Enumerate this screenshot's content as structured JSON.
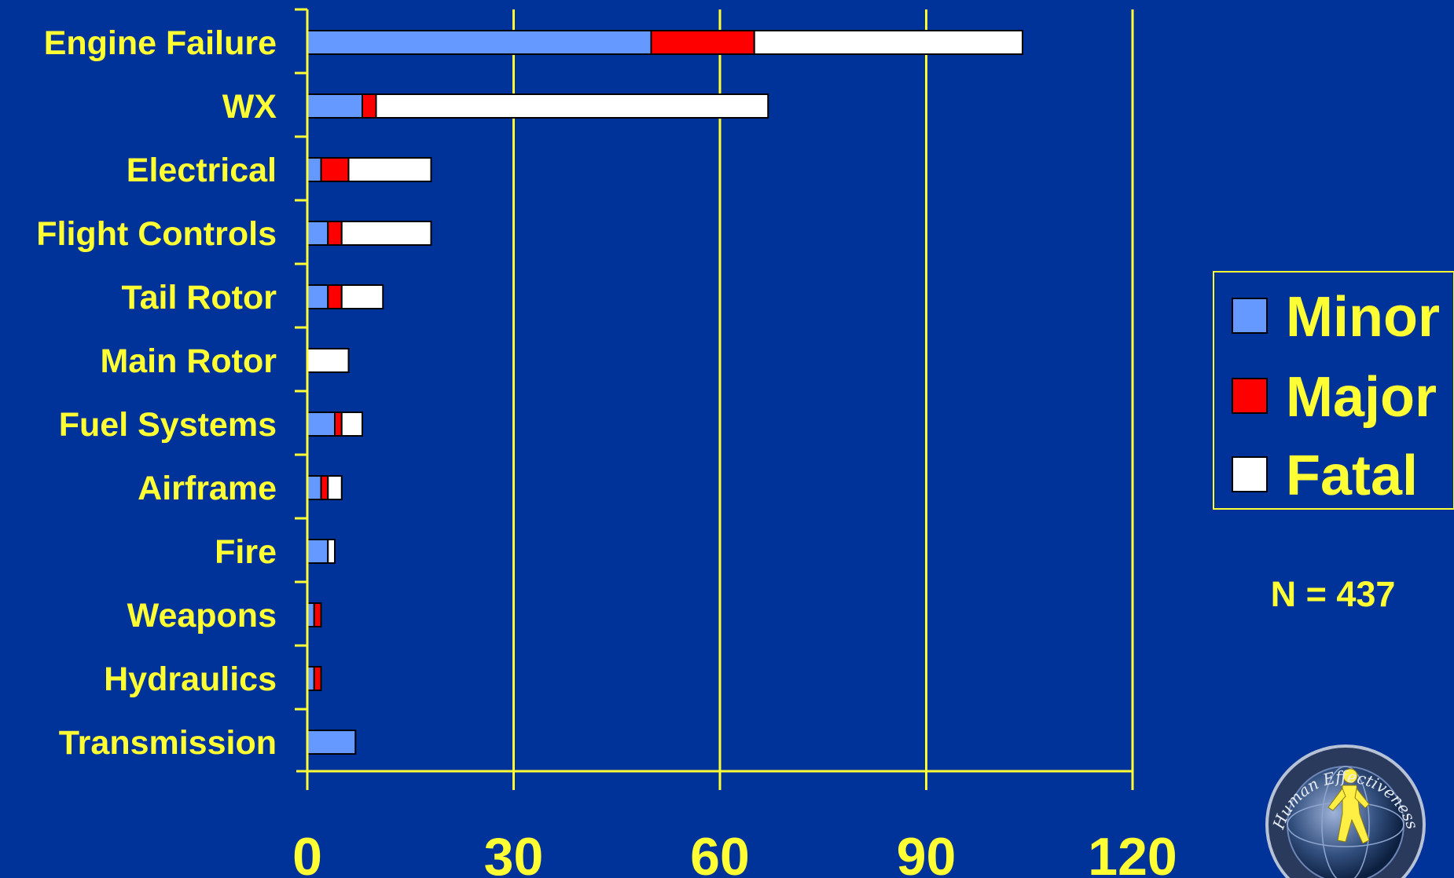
{
  "colors": {
    "background": "#003399",
    "axis": "#FFFF33",
    "text": "#FFFF33",
    "minor": "#6699FF",
    "major": "#FF0000",
    "fatal": "#FFFFFF",
    "bar_outline": "#000000"
  },
  "note": "N = 437",
  "seal_text": "Human Effectiveness",
  "chart_data": {
    "type": "bar",
    "orientation": "horizontal",
    "stacked": true,
    "categories": [
      "Engine Failure",
      "WX",
      "Electrical",
      "Flight Controls",
      "Tail Rotor",
      "Main Rotor",
      "Fuel Systems",
      "Airframe",
      "Fire",
      "Weapons",
      "Hydraulics",
      "Transmission"
    ],
    "series": [
      {
        "name": "Minor",
        "values": [
          50,
          8,
          2,
          3,
          3,
          0,
          4,
          2,
          3,
          1,
          1,
          7
        ]
      },
      {
        "name": "Major",
        "values": [
          15,
          2,
          4,
          2,
          2,
          0,
          1,
          1,
          0,
          1,
          1,
          0
        ]
      },
      {
        "name": "Fatal",
        "values": [
          39,
          57,
          12,
          13,
          6,
          6,
          3,
          2,
          1,
          0,
          0,
          0
        ]
      }
    ],
    "xlim": [
      0,
      120
    ],
    "xticks": [
      0,
      30,
      60,
      90,
      120
    ],
    "grid": "vertical",
    "legend": "right",
    "title": "",
    "xlabel": "",
    "ylabel": ""
  }
}
